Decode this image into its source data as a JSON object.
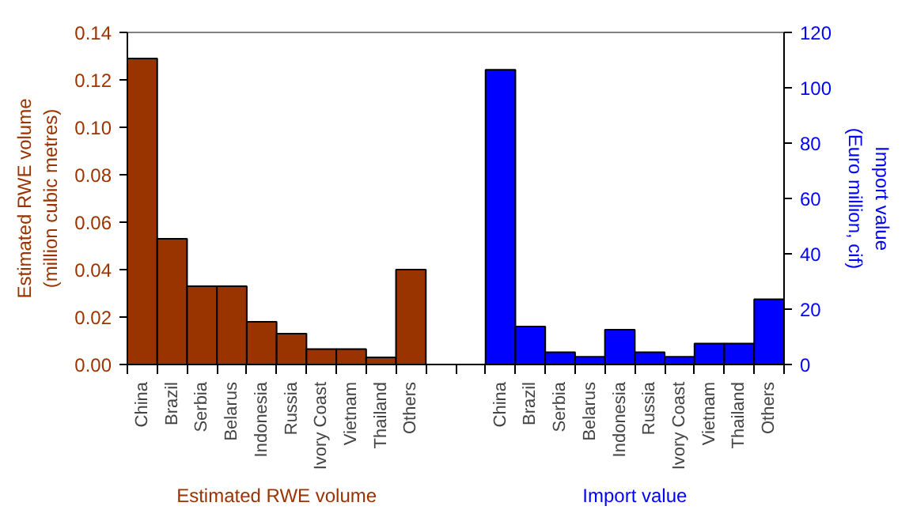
{
  "chart_data": {
    "type": "bar",
    "categories": [
      "China",
      "Brazil",
      "Serbia",
      "Belarus",
      "Indonesia",
      "Russia",
      "Ivory Coast",
      "Vietnam",
      "Thailand",
      "Others",
      null,
      null,
      "China",
      "Brazil",
      "Serbia",
      "Belarus",
      "Indonesia",
      "Russia",
      "Ivory Coast",
      "Vietnam",
      "Thailand",
      "Others"
    ],
    "ylabel": "Estimated RWE volume\n(million cubic metres)",
    "y2label": "Import value\n(Euro million, cif)",
    "series": [
      {
        "color": "#993300",
        "values": [
          0.129,
          0.053,
          0.033,
          0.033,
          0.018,
          0.013,
          0.0065,
          0.0065,
          0.003,
          0.04,
          null,
          null,
          null,
          null,
          null,
          null,
          null,
          null,
          null,
          null,
          null,
          null
        ]
      },
      {
        "color": "#0000ff",
        "axis": "y2",
        "values": [
          null,
          null,
          null,
          null,
          null,
          null,
          null,
          null,
          null,
          null,
          null,
          null,
          106.5,
          13.7,
          4.4,
          2.8,
          12.6,
          4.4,
          2.8,
          7.6,
          7.6,
          23.6
        ]
      }
    ],
    "ylim": [
      0,
      0.14
    ],
    "yticks": [
      {
        "value": 0,
        "label": "0.00"
      },
      {
        "value": 0.02,
        "label": "0.02"
      },
      {
        "value": 0.04,
        "label": "0.04"
      },
      {
        "value": 0.06,
        "label": "0.06"
      },
      {
        "value": 0.08,
        "label": "0.08"
      },
      {
        "value": 0.1,
        "label": "0.10"
      },
      {
        "value": 0.12,
        "label": "0.12"
      },
      {
        "value": 0.14,
        "label": "0.14"
      }
    ],
    "y2lim": [
      0,
      120
    ],
    "y2ticks": [
      0,
      20,
      40,
      60,
      80,
      100,
      120
    ],
    "annotations": [
      "Estimated RWE volume",
      "Import value"
    ],
    "grid": false
  }
}
